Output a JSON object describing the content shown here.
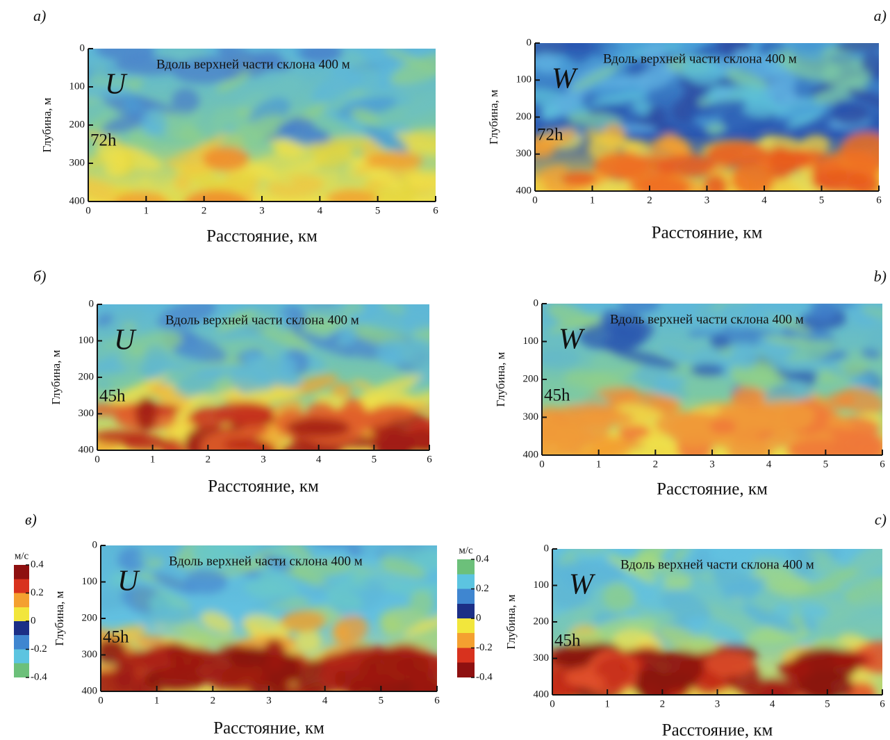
{
  "chart_data": [
    {
      "type": "heatmap",
      "panel_label": "а)",
      "variable": "U",
      "annotation": "Вдоль верхней части склона 400 м",
      "time_label": "72h",
      "x_label": "Расстояние, км",
      "y_label": "Глубина, м",
      "xlim": [
        0,
        6
      ],
      "ylim": [
        400,
        0
      ],
      "xticks": [
        0,
        1,
        2,
        3,
        4,
        5,
        6
      ],
      "yticks": [
        0,
        100,
        200,
        300,
        400
      ]
    },
    {
      "type": "heatmap",
      "panel_label": "a)",
      "variable": "W",
      "annotation": "Вдоль верхней части склона 400 м",
      "time_label": "72h",
      "x_label": "Расстояние, км",
      "y_label": "Глубина, м",
      "xlim": [
        0,
        6
      ],
      "ylim": [
        400,
        0
      ],
      "xticks": [
        0,
        1,
        2,
        3,
        4,
        5,
        6
      ],
      "yticks": [
        0,
        100,
        200,
        300,
        400
      ]
    },
    {
      "type": "heatmap",
      "panel_label": "б)",
      "variable": "U",
      "annotation": "Вдоль верхней части склона 400 м",
      "time_label": "45h",
      "x_label": "Расстояние, км",
      "y_label": "Глубина, м",
      "xlim": [
        0,
        6
      ],
      "ylim": [
        400,
        0
      ],
      "xticks": [
        0,
        1,
        2,
        3,
        4,
        5,
        6
      ],
      "yticks": [
        0,
        100,
        200,
        300,
        400
      ]
    },
    {
      "type": "heatmap",
      "panel_label": "b)",
      "variable": "W",
      "annotation": "Вдоль верхней части склона 400 м",
      "time_label": "45h",
      "x_label": "Расстояние, км",
      "y_label": "Глубина, м",
      "xlim": [
        0,
        6
      ],
      "ylim": [
        400,
        0
      ],
      "xticks": [
        0,
        1,
        2,
        3,
        4,
        5,
        6
      ],
      "yticks": [
        0,
        100,
        200,
        300,
        400
      ]
    },
    {
      "type": "heatmap",
      "panel_label": "в)",
      "variable": "U",
      "annotation": "Вдоль верхней части склона 400 м",
      "time_label": "45h",
      "x_label": "Расстояние, км",
      "y_label": "Глубина, м",
      "xlim": [
        0,
        6
      ],
      "ylim": [
        400,
        0
      ],
      "xticks": [
        0,
        1,
        2,
        3,
        4,
        5,
        6
      ],
      "yticks": [
        0,
        100,
        200,
        300,
        400
      ],
      "colorbar": {
        "label": "м/с",
        "lim": [
          -0.4,
          0.4
        ],
        "ticks": [
          0.4,
          0.2,
          0,
          -0.2,
          -0.4
        ],
        "colors": [
          "#6cc07a",
          "#5cc4e0",
          "#3f86d0",
          "#1c2f86",
          "#f2e63c",
          "#f4a030",
          "#d8321e",
          "#8e1010"
        ]
      }
    },
    {
      "type": "heatmap",
      "panel_label": "c)",
      "variable": "W",
      "annotation": "Вдоль верхней части склона 400 м",
      "time_label": "45h",
      "x_label": "Расстояние, км",
      "y_label": "Глубина, м",
      "xlim": [
        0,
        6
      ],
      "ylim": [
        400,
        0
      ],
      "xticks": [
        0,
        1,
        2,
        3,
        4,
        5,
        6
      ],
      "yticks": [
        0,
        100,
        200,
        300,
        400
      ],
      "colorbar": {
        "label": "м/с",
        "lim": [
          -0.4,
          0.4
        ],
        "ticks": [
          0.4,
          0.2,
          0,
          -0.2,
          -0.4
        ],
        "colors": [
          "#8e1010",
          "#d8321e",
          "#f4a030",
          "#f2e63c",
          "#1c2f86",
          "#3f86d0",
          "#5cc4e0",
          "#6cc07a"
        ]
      }
    }
  ]
}
